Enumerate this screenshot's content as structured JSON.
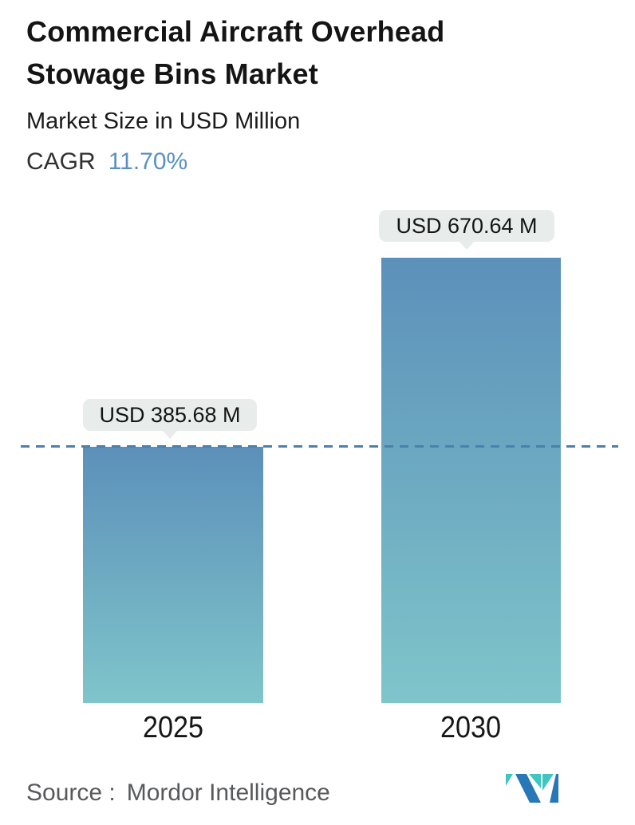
{
  "header": {
    "title": "Commercial Aircraft Overhead Stowage Bins Market",
    "subtitle": "Market Size in USD Million",
    "cagr_label": "CAGR",
    "cagr_value": "11.70%"
  },
  "chart_data": {
    "type": "bar",
    "title": "Commercial Aircraft Overhead Stowage Bins Market",
    "subtitle": "Market Size in USD Million",
    "unit": "USD Million",
    "cagr_percent": 11.7,
    "categories": [
      "2025",
      "2030"
    ],
    "values": [
      385.68,
      670.64
    ],
    "value_labels": [
      "USD 385.68 M",
      "USD 670.64 M"
    ],
    "reference_line": {
      "value": 385.68,
      "style": "dashed"
    },
    "ylim": [
      0,
      770
    ],
    "grid": "off",
    "legend": "none",
    "colors": {
      "bar_gradient_top": "#5c90ba",
      "bar_gradient_bottom": "#7fc5ca",
      "reference_line": "#4c80ad",
      "value_label_bg": "#e8edec",
      "cagr_accent": "#5b90c1"
    }
  },
  "footer": {
    "source_label": "Source :",
    "source_value": "Mordor Intelligence",
    "logo_name": "mordor-intelligence-logo",
    "logo_colors": {
      "blue": "#2878b8",
      "teal": "#3fc6c0"
    }
  }
}
